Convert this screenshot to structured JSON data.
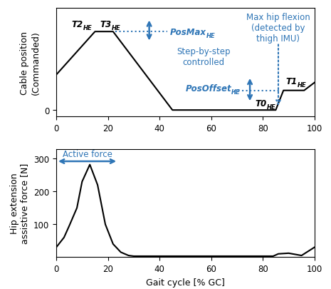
{
  "chart_data": [
    {
      "type": "line",
      "y_label": "Cable position\n(Commanded)",
      "x": [
        0,
        15,
        22,
        45,
        85,
        88,
        96,
        100
      ],
      "values": [
        0.45,
        1.0,
        1.0,
        0.0,
        0.0,
        0.25,
        0.25,
        0.35
      ],
      "color": "#000000",
      "xlim": [
        0,
        100
      ],
      "xticks": [
        0,
        20,
        40,
        60,
        80,
        100
      ],
      "ylim": [
        -0.08,
        1.3
      ],
      "yticks": [
        0
      ],
      "annotations": [
        {
          "text": "T2",
          "sub": "HE",
          "color": "#000000"
        },
        {
          "text": "T3",
          "sub": "HE",
          "color": "#000000"
        },
        {
          "text": "PosMax",
          "sub": "HE",
          "color": "#2e75b6"
        },
        {
          "text": "Max hip flexion\n(detected by\nthigh IMU)",
          "color": "#2e75b6"
        },
        {
          "text": "Step-by-step\ncontrolled",
          "color": "#2e75b6"
        },
        {
          "text": "PosOffset",
          "sub": "HE",
          "color": "#2e75b6"
        },
        {
          "text": "T0",
          "sub": "HE",
          "color": "#000000"
        },
        {
          "text": "T1",
          "sub": "HE",
          "color": "#000000"
        }
      ]
    },
    {
      "type": "line",
      "y_label": "Hip extension\nassistive force [N]",
      "x_label": "Gait cycle [% GC]",
      "x": [
        0,
        3,
        5,
        8,
        10,
        13,
        16,
        19,
        22,
        25,
        28,
        30,
        84,
        86,
        90,
        95,
        100
      ],
      "values": [
        30,
        60,
        95,
        150,
        230,
        282,
        220,
        100,
        40,
        15,
        5,
        3,
        3,
        10,
        12,
        5,
        30
      ],
      "color": "#000000",
      "xlim": [
        0,
        100
      ],
      "xticks": [
        0,
        20,
        40,
        60,
        80,
        100
      ],
      "ylim": [
        0,
        330
      ],
      "yticks": [
        100,
        200,
        300
      ],
      "annotations": [
        {
          "text": "Active force",
          "color": "#2e75b6"
        }
      ]
    }
  ]
}
